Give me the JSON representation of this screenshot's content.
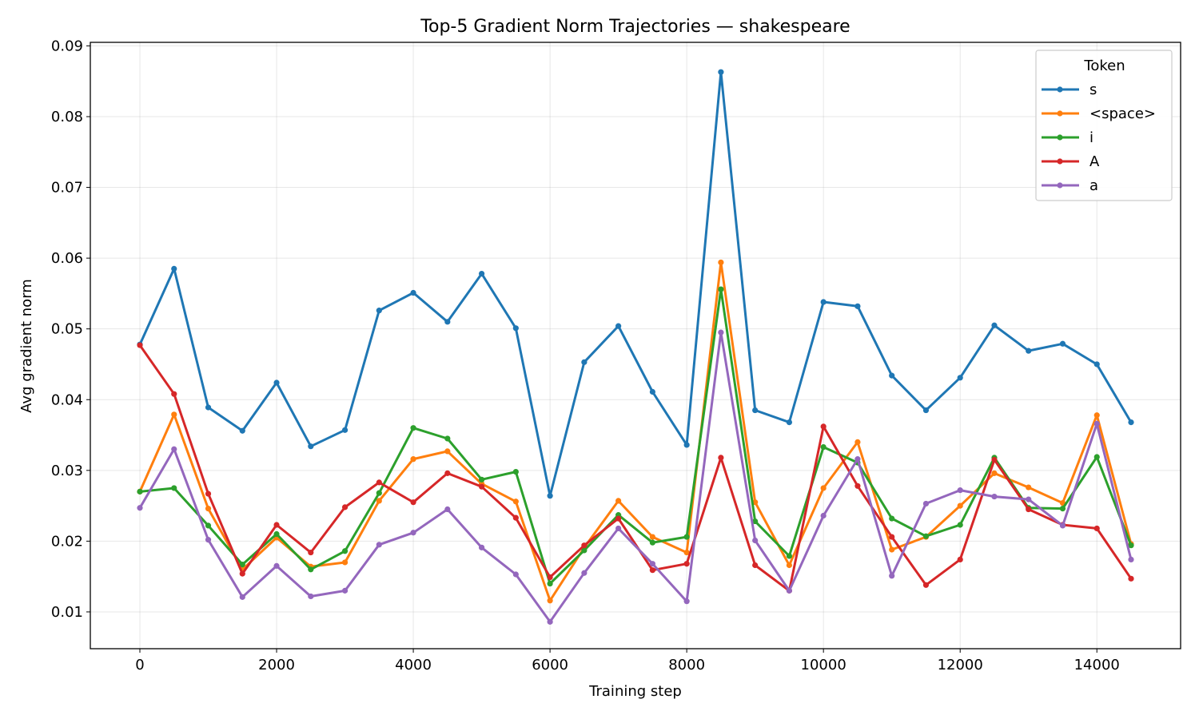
{
  "chart_data": {
    "type": "line",
    "title": "Top-5 Gradient Norm Trajectories — shakespeare",
    "xlabel": "Training step",
    "ylabel": "Avg gradient norm",
    "xlim": [
      -725,
      15225
    ],
    "ylim": [
      0.0048,
      0.0905
    ],
    "xticks": [
      0,
      2000,
      4000,
      6000,
      8000,
      10000,
      12000,
      14000
    ],
    "yticks": [
      0.01,
      0.02,
      0.03,
      0.04,
      0.05,
      0.06,
      0.07,
      0.08,
      0.09
    ],
    "ytick_labels": [
      "0.01",
      "0.02",
      "0.03",
      "0.04",
      "0.05",
      "0.06",
      "0.07",
      "0.08",
      "0.09"
    ],
    "grid": true,
    "legend": {
      "title": "Token",
      "placement": "top-right"
    },
    "x": [
      0,
      500,
      1000,
      1500,
      2000,
      2500,
      3000,
      3500,
      4000,
      4500,
      5000,
      5500,
      6000,
      6500,
      7000,
      7500,
      8000,
      8500,
      9000,
      9500,
      10000,
      10500,
      11000,
      11500,
      12000,
      12500,
      13000,
      13500,
      14000,
      14500
    ],
    "series": [
      {
        "name": "s",
        "color": "#1f77b4",
        "values": [
          0.0478,
          0.0585,
          0.0389,
          0.0356,
          0.0424,
          0.0334,
          0.0357,
          0.0526,
          0.0551,
          0.051,
          0.0578,
          0.0501,
          0.0264,
          0.0453,
          0.0504,
          0.0411,
          0.0336,
          0.0863,
          0.0385,
          0.0368,
          0.0538,
          0.0532,
          0.0434,
          0.0385,
          0.0431,
          0.0505,
          0.0469,
          0.0479,
          0.045,
          0.0368
        ]
      },
      {
        "name": "<space>",
        "color": "#ff7f0e",
        "values": [
          0.027,
          0.0379,
          0.0246,
          0.016,
          0.0205,
          0.0164,
          0.017,
          0.0257,
          0.0316,
          0.0327,
          0.0281,
          0.0256,
          0.0116,
          0.0191,
          0.0257,
          0.0206,
          0.0184,
          0.0594,
          0.0255,
          0.0166,
          0.0275,
          0.034,
          0.0188,
          0.0206,
          0.025,
          0.0296,
          0.0276,
          0.0254,
          0.0378,
          0.0196
        ]
      },
      {
        "name": "i",
        "color": "#2ca02c",
        "values": [
          0.027,
          0.0275,
          0.0222,
          0.0167,
          0.021,
          0.016,
          0.0186,
          0.0268,
          0.036,
          0.0345,
          0.0287,
          0.0298,
          0.014,
          0.0187,
          0.0237,
          0.0198,
          0.0206,
          0.0556,
          0.0228,
          0.0179,
          0.0333,
          0.0311,
          0.0232,
          0.0207,
          0.0223,
          0.0318,
          0.0247,
          0.0246,
          0.0319,
          0.0194
        ]
      },
      {
        "name": "A",
        "color": "#d62728",
        "values": [
          0.0477,
          0.0408,
          0.0267,
          0.0154,
          0.0223,
          0.0184,
          0.0248,
          0.0283,
          0.0255,
          0.0296,
          0.0277,
          0.0233,
          0.0149,
          0.0194,
          0.0232,
          0.0159,
          0.0168,
          0.0318,
          0.0166,
          0.013,
          0.0362,
          0.0278,
          0.0206,
          0.0138,
          0.0174,
          0.0315,
          0.0245,
          0.0223,
          0.0218,
          0.0147
        ]
      },
      {
        "name": "a",
        "color": "#9467bd",
        "values": [
          0.0247,
          0.033,
          0.0202,
          0.0121,
          0.0165,
          0.0122,
          0.013,
          0.0195,
          0.0212,
          0.0245,
          0.0191,
          0.0153,
          0.0086,
          0.0155,
          0.0218,
          0.0168,
          0.0115,
          0.0495,
          0.0201,
          0.013,
          0.0236,
          0.0316,
          0.0151,
          0.0253,
          0.0272,
          0.0263,
          0.0259,
          0.0222,
          0.0366,
          0.0174
        ]
      }
    ]
  }
}
